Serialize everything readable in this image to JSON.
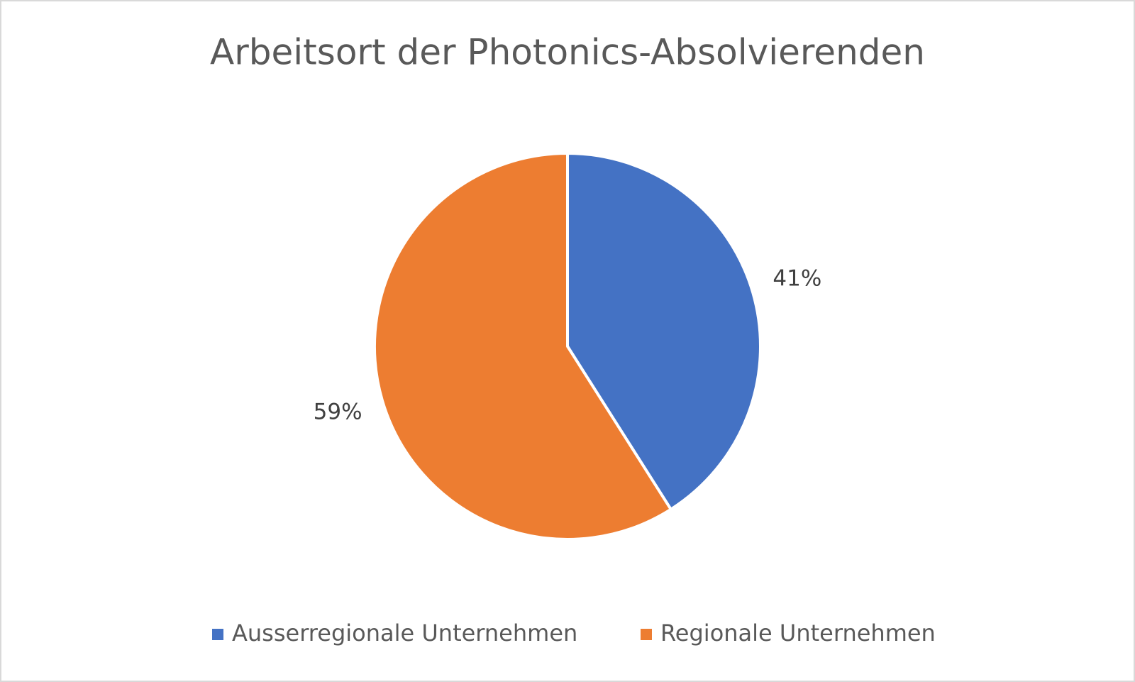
{
  "chart_data": {
    "type": "pie",
    "title": "Arbeitsort der Photonics-Absolvierenden",
    "categories": [
      "Ausserregionale Unternehmen",
      "Regionale Unternehmen"
    ],
    "values": [
      41,
      59
    ],
    "value_labels": [
      "41%",
      "59%"
    ],
    "colors": [
      "#4472c4",
      "#ed7d31"
    ],
    "legend": "bottom"
  }
}
